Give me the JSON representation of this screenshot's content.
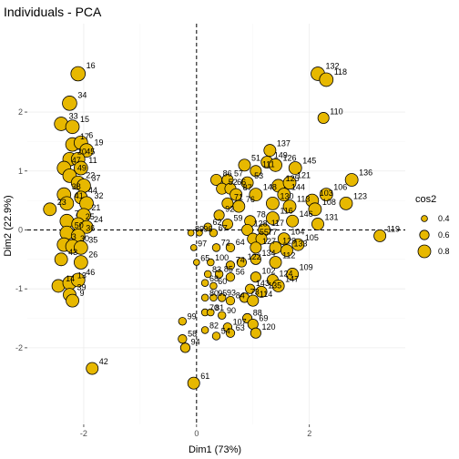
{
  "chart_data": {
    "type": "scatter",
    "title": "Individuals - PCA",
    "xlabel": "Dim1 (73%)",
    "ylabel": "Dim2 (22.9%)",
    "xlim": [
      -3.0,
      3.7
    ],
    "ylim": [
      -3.3,
      3.5
    ],
    "x_ticks": [
      -2,
      0,
      2
    ],
    "y_ticks": [
      -2,
      -1,
      0,
      1,
      2
    ],
    "x_tick_labels": [
      "-2",
      "0",
      "2"
    ],
    "y_tick_labels": [
      "-2",
      "-1",
      "0",
      "1",
      "2"
    ],
    "grid": true,
    "reference_lines": {
      "x": 0,
      "y": 0,
      "style": "dashed"
    },
    "point_fill": "#E7B800",
    "point_stroke": "#000000",
    "legend": {
      "title": "cos2",
      "position": "right",
      "entries": [
        {
          "label": "0.4",
          "value": 0.4
        },
        {
          "label": "0.6",
          "value": 0.6
        },
        {
          "label": "0.8",
          "value": 0.8
        }
      ]
    },
    "points": [
      {
        "label": "16",
        "x": -2.1,
        "y": 2.65,
        "cos2": 0.9
      },
      {
        "label": "132",
        "x": 2.15,
        "y": 2.65,
        "cos2": 0.85
      },
      {
        "label": "118",
        "x": 2.3,
        "y": 2.55,
        "cos2": 0.85
      },
      {
        "label": "34",
        "x": -2.25,
        "y": 2.15,
        "cos2": 0.9
      },
      {
        "label": "33",
        "x": -2.4,
        "y": 1.8,
        "cos2": 0.85
      },
      {
        "label": "15",
        "x": -2.2,
        "y": 1.75,
        "cos2": 0.85
      },
      {
        "label": "110",
        "x": 2.25,
        "y": 1.9,
        "cos2": 0.7
      },
      {
        "label": "17",
        "x": -2.2,
        "y": 1.45,
        "cos2": 0.85
      },
      {
        "label": "6",
        "x": -2.05,
        "y": 1.48,
        "cos2": 0.85
      },
      {
        "label": "19",
        "x": -1.95,
        "y": 1.35,
        "cos2": 0.85
      },
      {
        "label": "20",
        "x": -2.25,
        "y": 1.2,
        "cos2": 0.85
      },
      {
        "label": "45",
        "x": -2.1,
        "y": 1.2,
        "cos2": 0.85
      },
      {
        "label": "47",
        "x": -2.35,
        "y": 1.05,
        "cos2": 0.85
      },
      {
        "label": "11",
        "x": -2.05,
        "y": 1.05,
        "cos2": 0.85
      },
      {
        "label": "49",
        "x": -2.25,
        "y": 0.92,
        "cos2": 0.85
      },
      {
        "label": "22",
        "x": -2.1,
        "y": 0.8,
        "cos2": 0.85
      },
      {
        "label": "37",
        "x": -2.0,
        "y": 0.75,
        "cos2": 0.85
      },
      {
        "label": "38",
        "x": -2.35,
        "y": 0.6,
        "cos2": 0.85
      },
      {
        "label": "44",
        "x": -2.05,
        "y": 0.55,
        "cos2": 0.8
      },
      {
        "label": "32",
        "x": -1.95,
        "y": 0.45,
        "cos2": 0.85
      },
      {
        "label": "41",
        "x": -2.3,
        "y": 0.45,
        "cos2": 0.85
      },
      {
        "label": "23",
        "x": -2.6,
        "y": 0.35,
        "cos2": 0.8
      },
      {
        "label": "21",
        "x": -2.0,
        "y": 0.25,
        "cos2": 0.85
      },
      {
        "label": "7",
        "x": -2.3,
        "y": 0.15,
        "cos2": 0.85
      },
      {
        "label": "25",
        "x": -2.1,
        "y": 0.1,
        "cos2": 0.8
      },
      {
        "label": "24",
        "x": -1.95,
        "y": 0.05,
        "cos2": 0.8
      },
      {
        "label": "50",
        "x": -2.3,
        "y": -0.05,
        "cos2": 0.85
      },
      {
        "label": "36",
        "x": -2.1,
        "y": -0.1,
        "cos2": 0.85
      },
      {
        "label": "3",
        "x": -2.35,
        "y": -0.25,
        "cos2": 0.85
      },
      {
        "label": "30",
        "x": -2.2,
        "y": -0.28,
        "cos2": 0.85
      },
      {
        "label": "35",
        "x": -2.05,
        "y": -0.3,
        "cos2": 0.85
      },
      {
        "label": "43",
        "x": -2.4,
        "y": -0.5,
        "cos2": 0.8
      },
      {
        "label": "26",
        "x": -2.05,
        "y": -0.55,
        "cos2": 0.85
      },
      {
        "label": "14",
        "x": -2.45,
        "y": -0.95,
        "cos2": 0.8
      },
      {
        "label": "13",
        "x": -2.25,
        "y": -0.9,
        "cos2": 0.85
      },
      {
        "label": "46",
        "x": -2.1,
        "y": -0.85,
        "cos2": 0.85
      },
      {
        "label": "39",
        "x": -2.25,
        "y": -1.1,
        "cos2": 0.8
      },
      {
        "label": "9",
        "x": -2.2,
        "y": -1.2,
        "cos2": 0.8
      },
      {
        "label": "42",
        "x": -1.85,
        "y": -2.35,
        "cos2": 0.75
      },
      {
        "label": "137",
        "x": 1.3,
        "y": 1.35,
        "cos2": 0.75
      },
      {
        "label": "149",
        "x": 1.25,
        "y": 1.15,
        "cos2": 0.75
      },
      {
        "label": "51",
        "x": 0.85,
        "y": 1.1,
        "cos2": 0.75
      },
      {
        "label": "111",
        "x": 1.05,
        "y": 1.0,
        "cos2": 0.7
      },
      {
        "label": "126",
        "x": 1.4,
        "y": 1.1,
        "cos2": 0.8
      },
      {
        "label": "145",
        "x": 1.75,
        "y": 1.05,
        "cos2": 0.8
      },
      {
        "label": "86",
        "x": 0.35,
        "y": 0.85,
        "cos2": 0.7
      },
      {
        "label": "57",
        "x": 0.55,
        "y": 0.85,
        "cos2": 0.7
      },
      {
        "label": "53",
        "x": 0.9,
        "y": 0.8,
        "cos2": 0.75
      },
      {
        "label": "125",
        "x": 1.45,
        "y": 0.75,
        "cos2": 0.8
      },
      {
        "label": "121",
        "x": 1.65,
        "y": 0.8,
        "cos2": 0.8
      },
      {
        "label": "136",
        "x": 2.75,
        "y": 0.85,
        "cos2": 0.8
      },
      {
        "label": "52",
        "x": 0.45,
        "y": 0.7,
        "cos2": 0.7
      },
      {
        "label": "66",
        "x": 0.6,
        "y": 0.7,
        "cos2": 0.7
      },
      {
        "label": "87",
        "x": 0.7,
        "y": 0.6,
        "cos2": 0.75
      },
      {
        "label": "148",
        "x": 1.05,
        "y": 0.6,
        "cos2": 0.8
      },
      {
        "label": "144",
        "x": 1.55,
        "y": 0.6,
        "cos2": 0.8
      },
      {
        "label": "106",
        "x": 2.3,
        "y": 0.6,
        "cos2": 0.8
      },
      {
        "label": "71",
        "x": 0.55,
        "y": 0.45,
        "cos2": 0.7
      },
      {
        "label": "76",
        "x": 0.75,
        "y": 0.4,
        "cos2": 0.75
      },
      {
        "label": "130",
        "x": 1.35,
        "y": 0.45,
        "cos2": 0.8
      },
      {
        "label": "113",
        "x": 1.65,
        "y": 0.4,
        "cos2": 0.8
      },
      {
        "label": "103",
        "x": 2.05,
        "y": 0.5,
        "cos2": 0.8
      },
      {
        "label": "108",
        "x": 2.1,
        "y": 0.35,
        "cos2": 0.8
      },
      {
        "label": "123",
        "x": 2.65,
        "y": 0.45,
        "cos2": 0.8
      },
      {
        "label": "92",
        "x": 0.4,
        "y": 0.25,
        "cos2": 0.65
      },
      {
        "label": "59",
        "x": 0.55,
        "y": 0.1,
        "cos2": 0.65
      },
      {
        "label": "78",
        "x": 0.95,
        "y": 0.15,
        "cos2": 0.7
      },
      {
        "label": "116",
        "x": 1.35,
        "y": 0.2,
        "cos2": 0.8
      },
      {
        "label": "146",
        "x": 1.7,
        "y": 0.15,
        "cos2": 0.75
      },
      {
        "label": "131",
        "x": 2.15,
        "y": 0.1,
        "cos2": 0.75
      },
      {
        "label": "62",
        "x": 0.2,
        "y": 0.05,
        "cos2": 0.5
      },
      {
        "label": "128",
        "x": 0.9,
        "y": 0.0,
        "cos2": 0.7
      },
      {
        "label": "117",
        "x": 1.2,
        "y": 0.0,
        "cos2": 0.75
      },
      {
        "label": "89",
        "x": -0.1,
        "y": -0.05,
        "cos2": 0.4
      },
      {
        "label": "96",
        "x": 0.05,
        "y": -0.05,
        "cos2": 0.4
      },
      {
        "label": "67",
        "x": 0.3,
        "y": -0.05,
        "cos2": 0.5
      },
      {
        "label": "55",
        "x": 1.0,
        "y": -0.15,
        "cos2": 0.7
      },
      {
        "label": "77",
        "x": 1.15,
        "y": -0.15,
        "cos2": 0.7
      },
      {
        "label": "104",
        "x": 1.55,
        "y": -0.15,
        "cos2": 0.75
      },
      {
        "label": "105",
        "x": 1.8,
        "y": -0.25,
        "cos2": 0.75
      },
      {
        "label": "119",
        "x": 3.25,
        "y": -0.1,
        "cos2": 0.75
      },
      {
        "label": "97",
        "x": -0.05,
        "y": -0.3,
        "cos2": 0.4
      },
      {
        "label": "72",
        "x": 0.35,
        "y": -0.3,
        "cos2": 0.5
      },
      {
        "label": "64",
        "x": 0.6,
        "y": -0.3,
        "cos2": 0.55
      },
      {
        "label": "127",
        "x": 1.05,
        "y": -0.3,
        "cos2": 0.7
      },
      {
        "label": "129",
        "x": 1.4,
        "y": -0.3,
        "cos2": 0.75
      },
      {
        "label": "133",
        "x": 1.6,
        "y": -0.35,
        "cos2": 0.75
      },
      {
        "label": "65",
        "x": 0.0,
        "y": -0.55,
        "cos2": 0.4
      },
      {
        "label": "100",
        "x": 0.25,
        "y": -0.55,
        "cos2": 0.45
      },
      {
        "label": "74",
        "x": 0.6,
        "y": -0.6,
        "cos2": 0.55
      },
      {
        "label": "122",
        "x": 0.8,
        "y": -0.55,
        "cos2": 0.6
      },
      {
        "label": "134",
        "x": 1.05,
        "y": -0.5,
        "cos2": 0.65
      },
      {
        "label": "112",
        "x": 1.4,
        "y": -0.55,
        "cos2": 0.75
      },
      {
        "label": "83",
        "x": 0.2,
        "y": -0.75,
        "cos2": 0.45
      },
      {
        "label": "85",
        "x": 0.4,
        "y": -0.75,
        "cos2": 0.5
      },
      {
        "label": "56",
        "x": 0.6,
        "y": -0.8,
        "cos2": 0.55
      },
      {
        "label": "109",
        "x": 1.7,
        "y": -0.75,
        "cos2": 0.75
      },
      {
        "label": "68",
        "x": 0.15,
        "y": -0.9,
        "cos2": 0.45
      },
      {
        "label": "60",
        "x": 0.3,
        "y": -0.95,
        "cos2": 0.45
      },
      {
        "label": "102",
        "x": 1.05,
        "y": -0.8,
        "cos2": 0.65
      },
      {
        "label": "124",
        "x": 1.35,
        "y": -0.85,
        "cos2": 0.7
      },
      {
        "label": "143",
        "x": 0.95,
        "y": -1.0,
        "cos2": 0.6
      },
      {
        "label": "147",
        "x": 1.45,
        "y": -0.95,
        "cos2": 0.75
      },
      {
        "label": "135",
        "x": 1.15,
        "y": -1.05,
        "cos2": 0.7
      },
      {
        "label": "80",
        "x": 0.15,
        "y": -1.15,
        "cos2": 0.45
      },
      {
        "label": "95",
        "x": 0.3,
        "y": -1.15,
        "cos2": 0.45
      },
      {
        "label": "93",
        "x": 0.45,
        "y": -1.15,
        "cos2": 0.5
      },
      {
        "label": "84",
        "x": 0.6,
        "y": -1.2,
        "cos2": 0.55
      },
      {
        "label": "73",
        "x": 0.85,
        "y": -1.15,
        "cos2": 0.6
      },
      {
        "label": "114",
        "x": 1.0,
        "y": -1.2,
        "cos2": 0.7
      },
      {
        "label": "70",
        "x": 0.15,
        "y": -1.4,
        "cos2": 0.45
      },
      {
        "label": "81",
        "x": 0.25,
        "y": -1.4,
        "cos2": 0.45
      },
      {
        "label": "90",
        "x": 0.45,
        "y": -1.45,
        "cos2": 0.5
      },
      {
        "label": "88",
        "x": 0.9,
        "y": -1.5,
        "cos2": 0.6
      },
      {
        "label": "69",
        "x": 1.0,
        "y": -1.6,
        "cos2": 0.65
      },
      {
        "label": "99",
        "x": -0.25,
        "y": -1.55,
        "cos2": 0.5
      },
      {
        "label": "107",
        "x": 0.55,
        "y": -1.65,
        "cos2": 0.55
      },
      {
        "label": "120",
        "x": 1.05,
        "y": -1.75,
        "cos2": 0.65
      },
      {
        "label": "82",
        "x": 0.15,
        "y": -1.7,
        "cos2": 0.45
      },
      {
        "label": "54",
        "x": 0.35,
        "y": -1.8,
        "cos2": 0.5
      },
      {
        "label": "63",
        "x": 0.6,
        "y": -1.75,
        "cos2": 0.55
      },
      {
        "label": "58",
        "x": -0.25,
        "y": -1.85,
        "cos2": 0.55
      },
      {
        "label": "94",
        "x": -0.2,
        "y": -2.0,
        "cos2": 0.6
      },
      {
        "label": "61",
        "x": -0.05,
        "y": -2.6,
        "cos2": 0.75
      }
    ]
  }
}
